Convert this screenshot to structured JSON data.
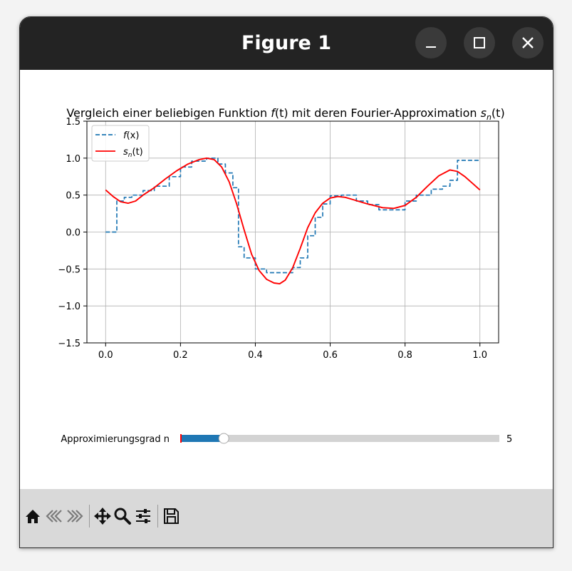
{
  "window": {
    "title": "Figure 1"
  },
  "window_controls": [
    "minimize-icon",
    "maximize-icon",
    "close-icon"
  ],
  "chart_data": {
    "type": "line",
    "title": "Vergleich einer beliebigen Funktion f(t) mit deren Fourier-Approximation s_n(t)",
    "title_parts": {
      "prefix": "Vergleich einer beliebigen Funktion ",
      "f": "f",
      "f_arg": "(t)",
      "middle": " mit deren Fourier-Approximation ",
      "s": "s",
      "s_sub": "n",
      "s_arg": "(t)"
    },
    "xlim": [
      -0.05,
      1.05
    ],
    "ylim": [
      -1.5,
      1.5
    ],
    "x_ticks": [
      0.0,
      0.2,
      0.4,
      0.6,
      0.8,
      1.0
    ],
    "x_tick_labels": [
      "0.0",
      "0.2",
      "0.4",
      "0.6",
      "0.8",
      "1.0"
    ],
    "y_ticks": [
      1.5,
      1.0,
      0.5,
      0.0,
      -0.5,
      -1.0,
      -1.5
    ],
    "y_tick_labels": [
      "1.5",
      "1.0",
      "0.5",
      "0.0",
      "−0.5",
      "−1.0",
      "−1.5"
    ],
    "grid": true,
    "legend_position": "top-left",
    "legend": [
      {
        "label": "f(x)",
        "base": "f",
        "arg": "(x)",
        "style": "dashed",
        "color": "#1f77b4"
      },
      {
        "label": "s_n(t)",
        "base": "s",
        "sub": "n",
        "arg": "(t)",
        "style": "solid",
        "color": "#ff0000"
      }
    ],
    "series": [
      {
        "name": "f(x)",
        "style": "dashed",
        "color": "#1f77b4",
        "x": [
          0.0,
          0.03,
          0.03,
          0.05,
          0.05,
          0.07,
          0.07,
          0.1,
          0.1,
          0.13,
          0.13,
          0.17,
          0.17,
          0.2,
          0.2,
          0.23,
          0.23,
          0.27,
          0.27,
          0.3,
          0.3,
          0.32,
          0.32,
          0.34,
          0.34,
          0.355,
          0.355,
          0.37,
          0.37,
          0.4,
          0.4,
          0.43,
          0.43,
          0.47,
          0.47,
          0.5,
          0.5,
          0.52,
          0.52,
          0.54,
          0.54,
          0.56,
          0.56,
          0.58,
          0.58,
          0.6,
          0.6,
          0.63,
          0.63,
          0.67,
          0.67,
          0.7,
          0.7,
          0.73,
          0.73,
          0.77,
          0.77,
          0.8,
          0.8,
          0.83,
          0.83,
          0.87,
          0.87,
          0.9,
          0.9,
          0.92,
          0.92,
          0.94,
          0.94,
          1.0
        ],
        "y": [
          0.0,
          0.0,
          0.42,
          0.42,
          0.47,
          0.47,
          0.5,
          0.5,
          0.56,
          0.56,
          0.62,
          0.62,
          0.75,
          0.75,
          0.88,
          0.88,
          0.96,
          0.96,
          1.0,
          1.0,
          0.92,
          0.92,
          0.8,
          0.8,
          0.6,
          0.6,
          -0.2,
          -0.2,
          -0.35,
          -0.35,
          -0.5,
          -0.5,
          -0.55,
          -0.55,
          -0.55,
          -0.55,
          -0.48,
          -0.48,
          -0.35,
          -0.35,
          -0.05,
          -0.05,
          0.2,
          0.2,
          0.38,
          0.38,
          0.49,
          0.49,
          0.5,
          0.5,
          0.42,
          0.42,
          0.37,
          0.37,
          0.3,
          0.3,
          0.3,
          0.3,
          0.42,
          0.42,
          0.5,
          0.5,
          0.58,
          0.58,
          0.62,
          0.62,
          0.7,
          0.7,
          0.97,
          0.97
        ]
      },
      {
        "name": "s_n(t)",
        "style": "solid",
        "color": "#ff0000",
        "x": [
          0.0,
          0.02,
          0.04,
          0.06,
          0.08,
          0.1,
          0.13,
          0.16,
          0.19,
          0.22,
          0.25,
          0.27,
          0.29,
          0.31,
          0.33,
          0.35,
          0.37,
          0.39,
          0.41,
          0.43,
          0.45,
          0.465,
          0.48,
          0.5,
          0.52,
          0.54,
          0.56,
          0.58,
          0.6,
          0.62,
          0.64,
          0.66,
          0.7,
          0.74,
          0.77,
          0.8,
          0.83,
          0.86,
          0.89,
          0.92,
          0.94,
          0.96,
          0.98,
          1.0
        ],
        "y": [
          0.57,
          0.48,
          0.41,
          0.39,
          0.42,
          0.5,
          0.6,
          0.72,
          0.83,
          0.92,
          0.98,
          1.0,
          0.98,
          0.88,
          0.68,
          0.38,
          0.03,
          -0.3,
          -0.52,
          -0.64,
          -0.69,
          -0.7,
          -0.65,
          -0.48,
          -0.22,
          0.06,
          0.26,
          0.39,
          0.46,
          0.48,
          0.47,
          0.44,
          0.38,
          0.33,
          0.32,
          0.36,
          0.47,
          0.62,
          0.76,
          0.84,
          0.82,
          0.75,
          0.66,
          0.57
        ]
      }
    ]
  },
  "slider": {
    "label": "Approximierungsgrad n",
    "value_text": "5",
    "value": 5,
    "min": 1,
    "max": 50
  },
  "toolbar": {
    "icons": [
      "home-icon",
      "back-arrow-icon",
      "forward-arrow-icon",
      "pan-icon",
      "zoom-icon",
      "configure-subplots-icon",
      "save-icon"
    ]
  },
  "colors": {
    "titlebar": "#232323",
    "slider_fill": "#1f77b4",
    "slider_track": "#d3d3d3",
    "toolbar_bg": "#d9d9d9",
    "f_line": "#1f77b4",
    "s_line": "#ff0000",
    "grid": "#b0b0b0"
  }
}
